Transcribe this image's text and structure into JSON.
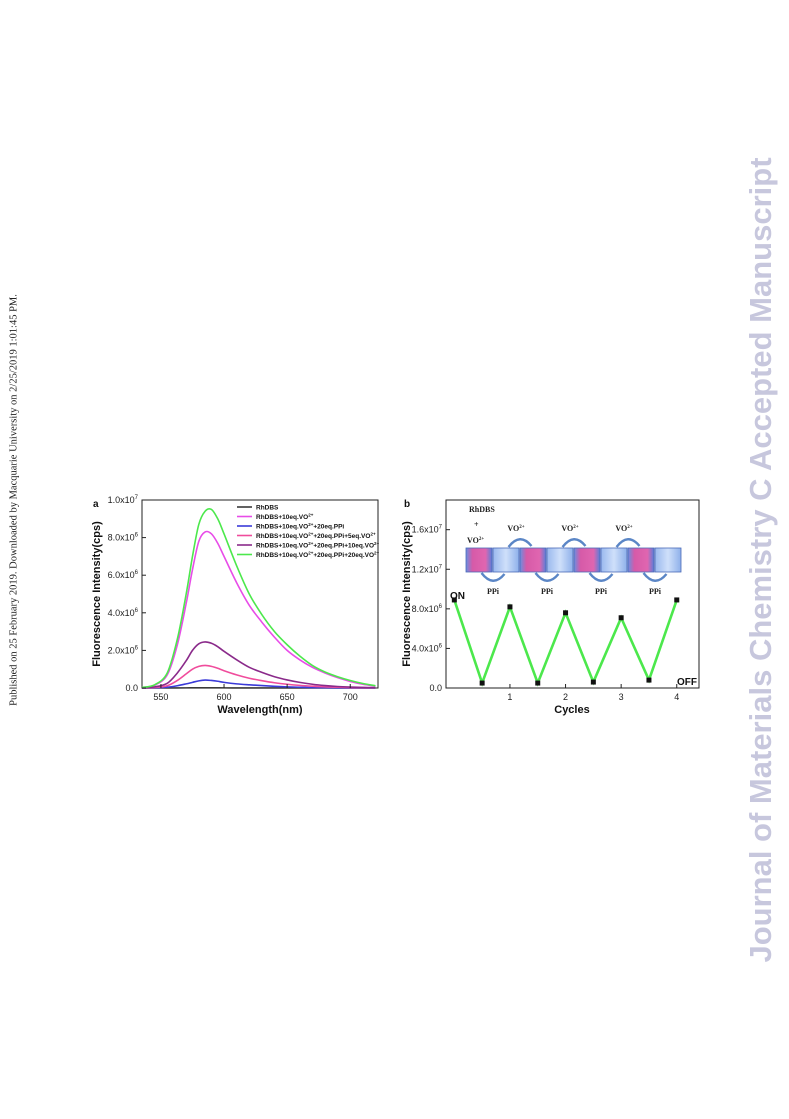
{
  "margin_left_text": "Published on 25 February 2019. Downloaded by Macquarie University on 2/25/2019 1:01:45 PM.",
  "margin_right_text": "Journal of Materials Chemistry C Accepted Manuscript",
  "colors": {
    "black": "#3a3a3a",
    "magenta": "#e84ce8",
    "blue": "#3a3ad8",
    "pink": "#f04c9c",
    "purple": "#8a2a8a",
    "green": "#4ce84c"
  },
  "chart_data": [
    {
      "panel": "a",
      "type": "line",
      "xlabel": "Wavelength(nm)",
      "ylabel": "Fluorescence Intensity(cps)",
      "xlim": [
        535,
        722
      ],
      "ylim": [
        0,
        10000000
      ],
      "xticks": [
        550,
        600,
        650,
        700
      ],
      "xtick_labels": [
        "550",
        "600",
        "650",
        "700"
      ],
      "yticks": [
        0,
        2000000,
        4000000,
        6000000,
        8000000,
        10000000
      ],
      "ytick_labels": [
        "0.0",
        "2.0x10",
        "4.0x10",
        "6.0x10",
        "8.0x10",
        "1.0x10"
      ],
      "ytick_exps": [
        "",
        "6",
        "6",
        "6",
        "6",
        "7"
      ],
      "x": [
        535,
        545,
        555,
        563,
        570,
        575,
        580,
        585,
        590,
        595,
        600,
        610,
        620,
        630,
        640,
        650,
        660,
        670,
        680,
        690,
        700,
        710,
        720
      ],
      "legend_position": "top-right",
      "series": [
        {
          "name": "RhDBS",
          "values": [
            0,
            0,
            2000,
            4000,
            6000,
            8000,
            10000,
            10000,
            9000,
            8000,
            7000,
            5000,
            4000,
            3000,
            2000,
            1500,
            1000,
            800,
            500,
            300,
            200,
            100,
            0
          ]
        },
        {
          "name": "RhDBS+10eq.VO2+",
          "values": [
            30000,
            150000,
            700000,
            2300000,
            4500000,
            6300000,
            7800000,
            8300000,
            8200000,
            7700000,
            7000000,
            5600000,
            4400000,
            3500000,
            2700000,
            2000000,
            1500000,
            1100000,
            800000,
            550000,
            350000,
            200000,
            100000
          ]
        },
        {
          "name": "RhDBS+10eq.VO2++20eq.PPi",
          "values": [
            0,
            10000,
            40000,
            120000,
            220000,
            300000,
            380000,
            420000,
            400000,
            360000,
            300000,
            220000,
            170000,
            130000,
            90000,
            60000,
            40000,
            25000,
            15000,
            8000,
            4000,
            2000,
            0
          ]
        },
        {
          "name": "RhDBS+10eq.VO2++20eq.PPi+5eq.VO2+",
          "values": [
            5000,
            30000,
            120000,
            400000,
            750000,
            1000000,
            1150000,
            1200000,
            1150000,
            1050000,
            920000,
            700000,
            520000,
            390000,
            280000,
            200000,
            140000,
            95000,
            60000,
            40000,
            25000,
            15000,
            8000
          ]
        },
        {
          "name": "RhDBS+10eq.VO2++20eq.PPi+10eq.VO2+",
          "values": [
            10000,
            60000,
            250000,
            800000,
            1450000,
            2000000,
            2350000,
            2450000,
            2380000,
            2200000,
            1950000,
            1500000,
            1100000,
            830000,
            600000,
            430000,
            300000,
            200000,
            130000,
            80000,
            50000,
            30000,
            15000
          ]
        },
        {
          "name": "RhDBS+10eq.VO2++20eq.PPi+20eq.VO2+",
          "values": [
            30000,
            170000,
            800000,
            2600000,
            5000000,
            7000000,
            8700000,
            9400000,
            9500000,
            9000000,
            8200000,
            6500000,
            5000000,
            3900000,
            3000000,
            2300000,
            1700000,
            1200000,
            850000,
            600000,
            400000,
            240000,
            120000
          ]
        }
      ]
    },
    {
      "panel": "b",
      "type": "line",
      "xlabel": "Cycles",
      "ylabel": "Fluorescence Intensity(cps)",
      "xlim": [
        -0.15,
        4.4
      ],
      "ylim": [
        0,
        19000000
      ],
      "xticks": [
        1,
        2,
        3,
        4
      ],
      "xtick_labels": [
        "1",
        "2",
        "3",
        "4"
      ],
      "yticks": [
        0,
        4000000,
        8000000,
        12000000,
        16000000
      ],
      "ytick_labels": [
        "0.0",
        "4.0x10",
        "8.0x10",
        "1.2x10",
        "1.6x10"
      ],
      "ytick_exps": [
        "",
        "6",
        "6",
        "7",
        "7"
      ],
      "x": [
        0,
        0.5,
        1,
        1.5,
        2,
        2.5,
        3,
        3.5,
        4
      ],
      "series": [
        {
          "values": [
            8900000,
            500000,
            8200000,
            500000,
            7600000,
            600000,
            7100000,
            800000,
            8900000
          ]
        }
      ],
      "annotations": {
        "on": "ON",
        "off": "OFF",
        "rhdbs": "RhDBS",
        "plus": "+",
        "vo_start": "VO",
        "vo": "VO",
        "vo_charge": "2+",
        "ppi": "PPi"
      }
    }
  ]
}
